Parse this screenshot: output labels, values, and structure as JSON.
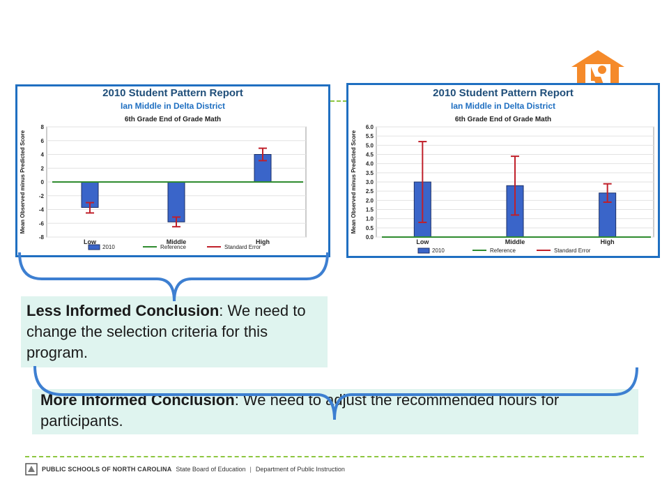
{
  "colors": {
    "frame": "#1f6fc1",
    "title_dark": "#1f4e79",
    "subtitle_blue": "#1f6fc1",
    "bar": "#3a65c9",
    "reference": "#2e8b2e",
    "error": "#c0202a",
    "box_fill": "#dff4ef",
    "dash": "#8dc63f",
    "logo": "#f58a2a"
  },
  "icons": {
    "logo": "house-person-icon"
  },
  "chart_data": [
    {
      "type": "bar",
      "title": "2010 Student Pattern Report",
      "subtitle": "Ian Middle in Delta District",
      "caption": "6th Grade End of Grade Math",
      "ylabel": "Mean Observed minus Predicted Score",
      "xlabel": "",
      "ylim": [
        -8,
        8
      ],
      "yticks": [
        -8,
        -6,
        -4,
        -2,
        0,
        2,
        4,
        6,
        8
      ],
      "categories": [
        "Low",
        "Middle",
        "High"
      ],
      "series": [
        {
          "name": "2010",
          "values": [
            -3.7,
            -5.8,
            4.0
          ],
          "error_low": [
            -4.5,
            -6.5,
            3.1
          ],
          "error_high": [
            -3.0,
            -5.1,
            4.9
          ]
        }
      ],
      "reference_value": 0,
      "legend": [
        "2010",
        "Reference",
        "Standard Error"
      ],
      "legend_position": "bottom",
      "grid": true
    },
    {
      "type": "bar",
      "title": "2010 Student Pattern Report",
      "subtitle": "Ian Middle in Delta District",
      "caption": "6th Grade End of Grade Math",
      "ylabel": "Mean Observed minus Predicted Score",
      "xlabel": "",
      "ylim": [
        0,
        6
      ],
      "yticks": [
        0.0,
        0.5,
        1.0,
        1.5,
        2.0,
        2.5,
        3.0,
        3.5,
        4.0,
        4.5,
        5.0,
        5.5,
        6.0
      ],
      "categories": [
        "Low",
        "Middle",
        "High"
      ],
      "series": [
        {
          "name": "2010",
          "values": [
            3.0,
            2.8,
            2.4
          ],
          "error_low": [
            0.8,
            1.2,
            1.9
          ],
          "error_high": [
            5.2,
            4.4,
            2.9
          ]
        }
      ],
      "reference_value": 0,
      "legend": [
        "2010",
        "Reference",
        "Standard Error"
      ],
      "legend_position": "bottom",
      "grid": true
    }
  ],
  "less_informed": {
    "label": "Less Informed Conclusion",
    "text": ": We need to change the selection criteria for this program."
  },
  "more_informed": {
    "label": "More Informed Conclusion",
    "text": ": We need to adjust the recommended hours for participants."
  },
  "footer": {
    "org": "PUBLIC SCHOOLS OF NORTH CAROLINA",
    "board": "State Board of Education",
    "divider": "|",
    "dept": "Department of Public Instruction"
  }
}
